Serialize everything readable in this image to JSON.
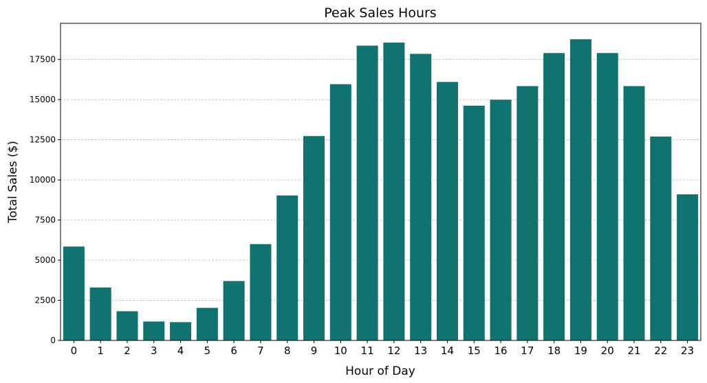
{
  "chart_data": {
    "type": "bar",
    "title": "Peak Sales Hours",
    "xlabel": "Hour of Day",
    "ylabel": "Total Sales ($)",
    "categories": [
      "0",
      "1",
      "2",
      "3",
      "4",
      "5",
      "6",
      "7",
      "8",
      "9",
      "10",
      "11",
      "12",
      "13",
      "14",
      "15",
      "16",
      "17",
      "18",
      "19",
      "20",
      "21",
      "22",
      "23"
    ],
    "values": [
      5850,
      3300,
      1820,
      1180,
      1140,
      2030,
      3700,
      6000,
      9030,
      12730,
      15960,
      18360,
      18550,
      17850,
      16100,
      14620,
      14990,
      15840,
      17900,
      18760,
      17900,
      15840,
      12700,
      9100
    ],
    "ylim": [
      0,
      19750
    ],
    "yticks": [
      0,
      2500,
      5000,
      7500,
      10000,
      12500,
      15000,
      17500
    ],
    "grid": "y-dashed",
    "bar_color": "#107370"
  }
}
